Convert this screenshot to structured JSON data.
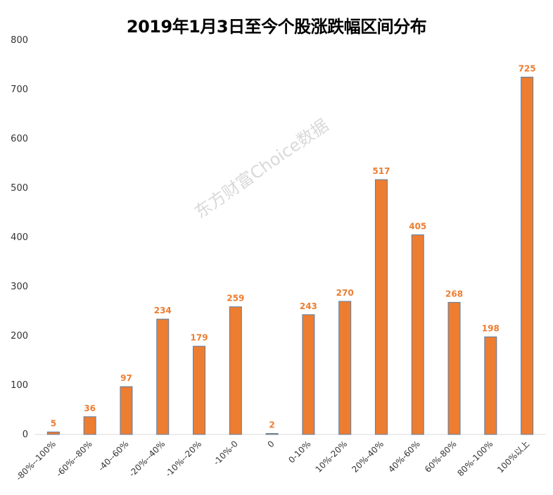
{
  "chart_data": {
    "type": "bar",
    "title": "2019年1月3日至今个股涨跌幅区间分布",
    "watermark": "东方财富Choice数据",
    "categories": [
      "-80%--100%",
      "-60%--80%",
      "-40--60%",
      "-20%--40%",
      "-10%--20%",
      "-10%-0",
      "0",
      "0-10%",
      "10%-20%",
      "20%-40%",
      "40%-60%",
      "60%-80%",
      "80%-100%",
      "100%以上"
    ],
    "values": [
      5,
      36,
      97,
      234,
      179,
      259,
      2,
      243,
      270,
      517,
      405,
      268,
      198,
      725
    ],
    "ylim": [
      0,
      800
    ],
    "yticks": [
      0,
      100,
      200,
      300,
      400,
      500,
      600,
      700,
      800
    ],
    "bar_color": "#ed7d31",
    "bar_edge_color": "#5b7fa6",
    "label_color": "#ed7d31",
    "grid": false,
    "legend": "none"
  }
}
